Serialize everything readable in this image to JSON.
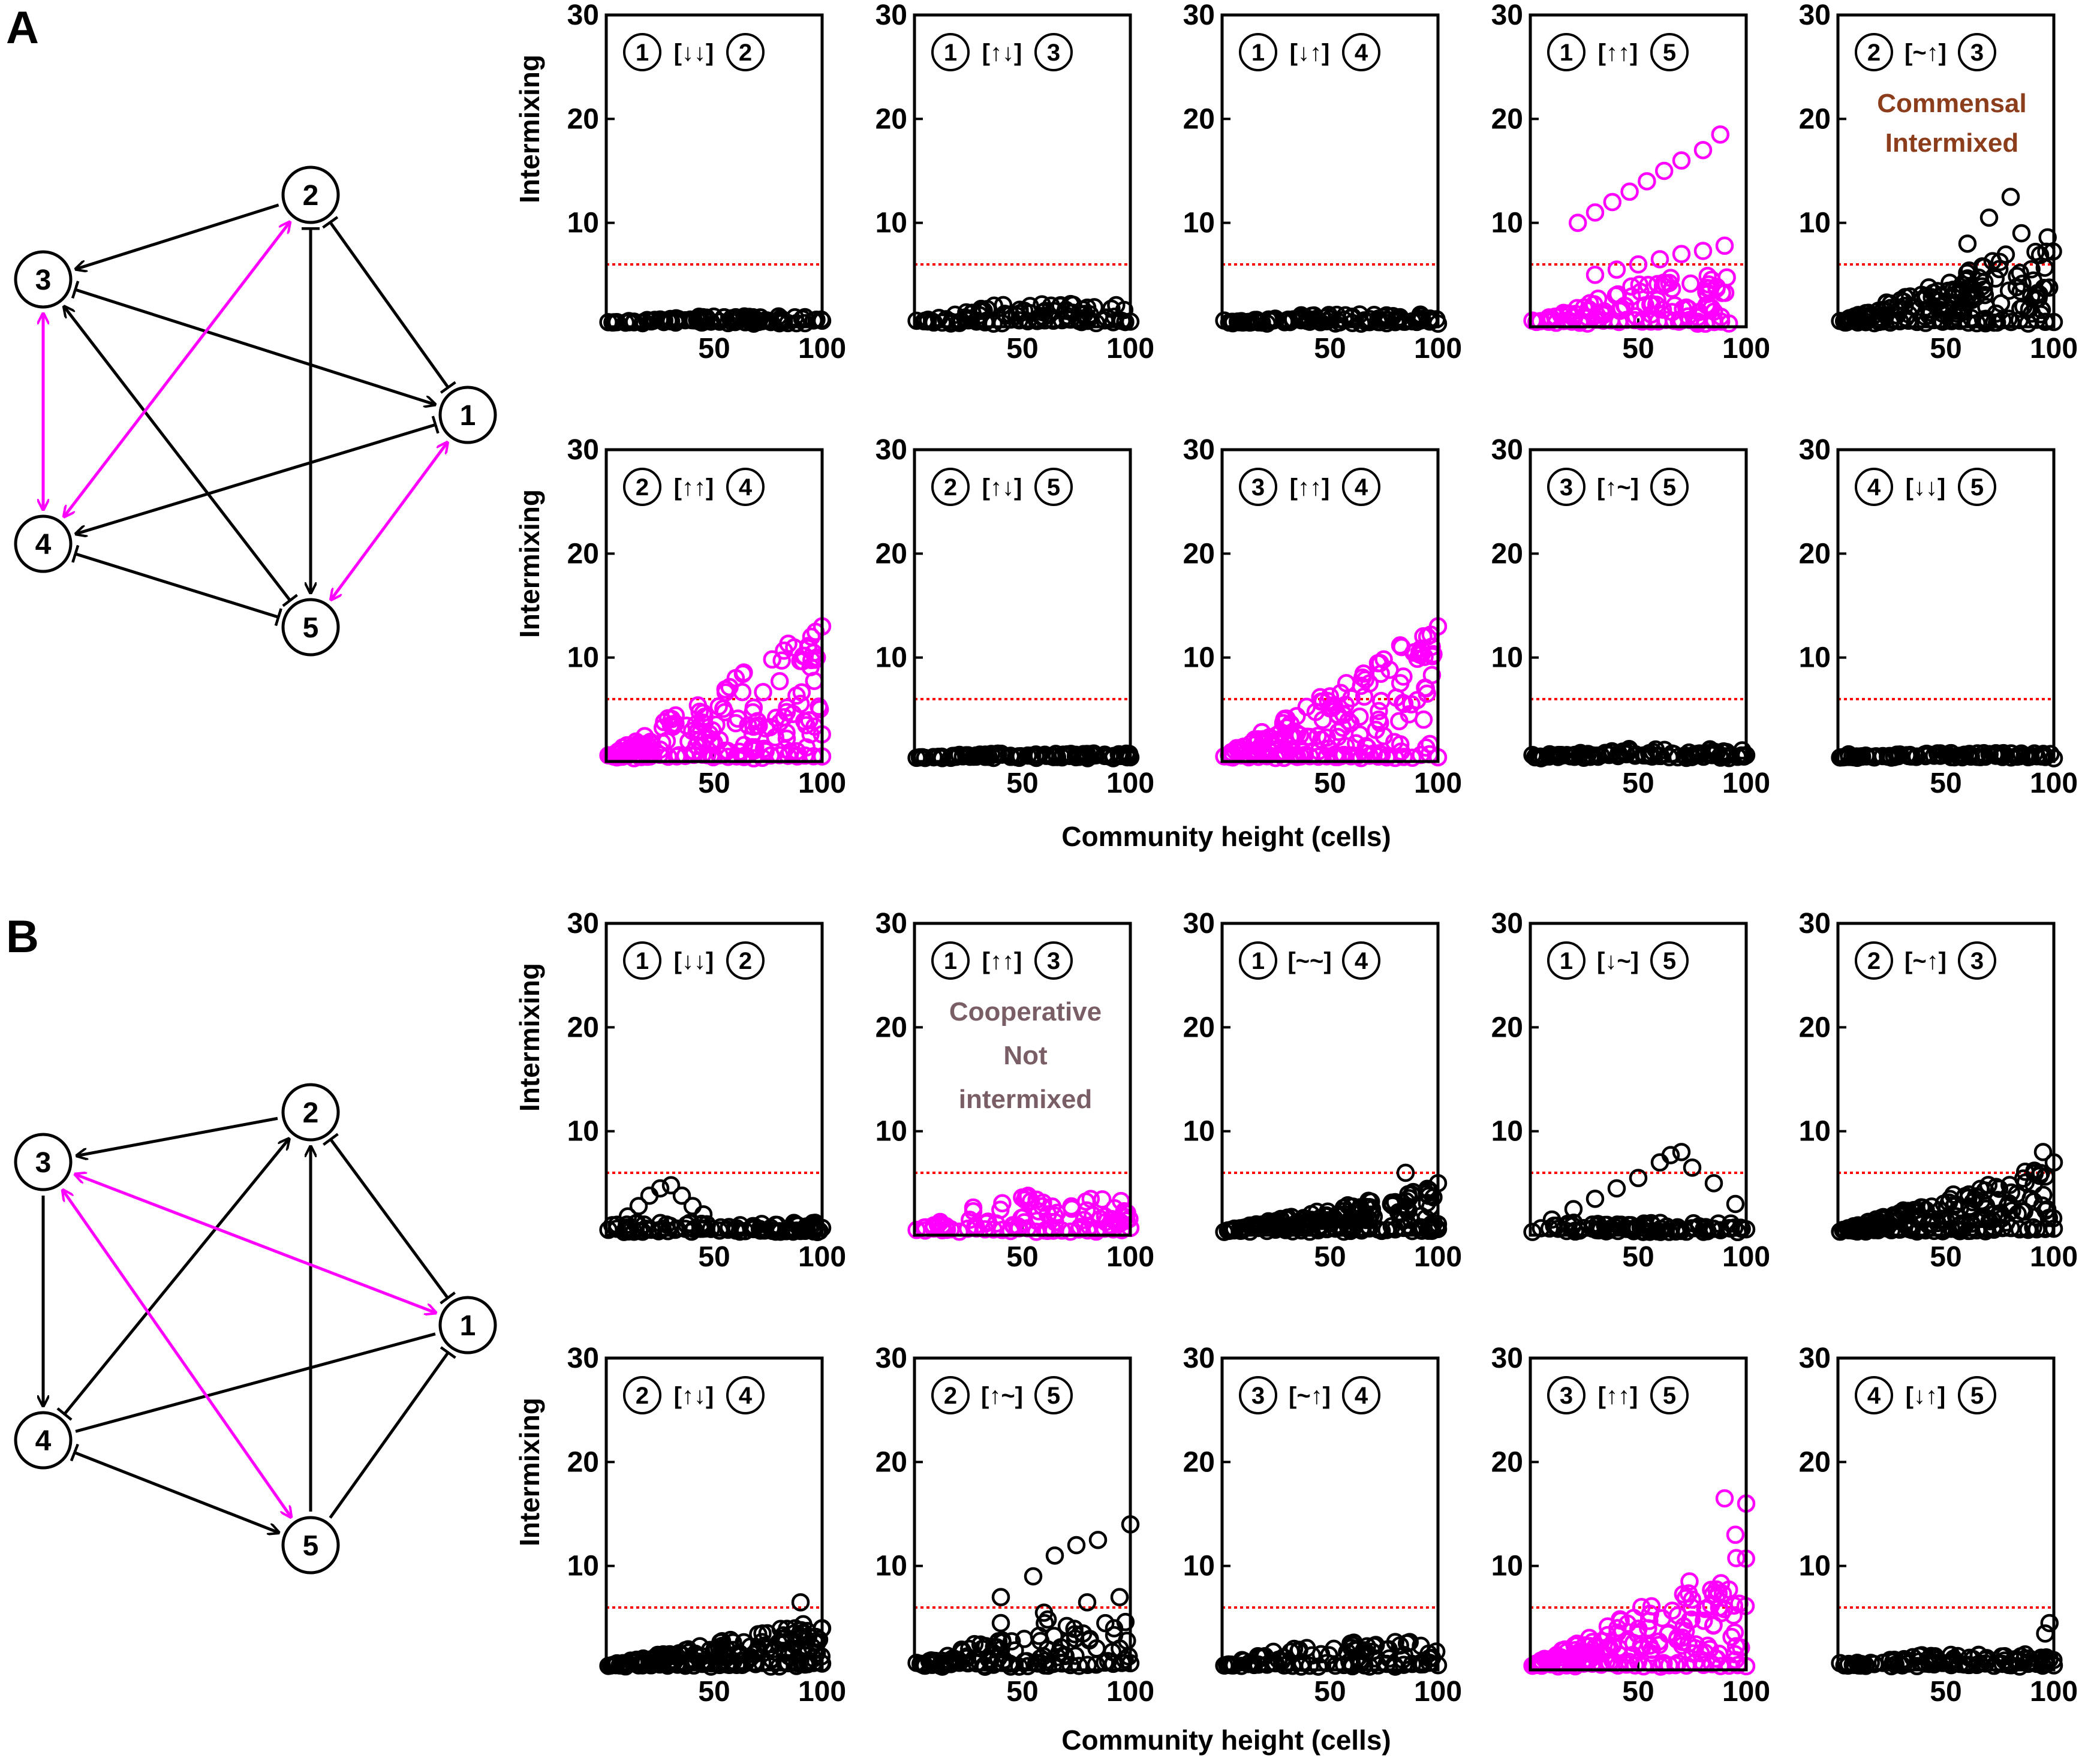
{
  "figure": {
    "panel_labels": [
      "A",
      "B"
    ],
    "common_ylabel": "Intermixing",
    "common_xlabel": "Community height (cells)",
    "axis": {
      "xlim": [
        0,
        100
      ],
      "ylim": [
        0,
        30
      ],
      "xticks": [
        50,
        100
      ],
      "yticks": [
        10,
        20,
        30
      ],
      "threshold": 6
    },
    "colors": {
      "intermixed": "#ff00ff",
      "not_intermixed": "#000000",
      "threshold": "#ff0000",
      "commensal_note": "#8b3d1c",
      "cooperative_note": "#7a5e66"
    }
  },
  "networks": [
    {
      "panel": "A",
      "nodes": [
        "1",
        "2",
        "3",
        "4",
        "5"
      ],
      "edges": [
        {
          "from": "2",
          "to": "3",
          "type": "arrow",
          "color": "black"
        },
        {
          "from": "2",
          "to": "1",
          "type": "inhibit-both",
          "color": "black"
        },
        {
          "from": "3",
          "to": "1",
          "type": "arrow-inhibit",
          "color": "black"
        },
        {
          "from": "1",
          "to": "4",
          "type": "arrow-inhibit",
          "color": "black"
        },
        {
          "from": "2",
          "to": "5",
          "type": "arrow-inhibit",
          "color": "black"
        },
        {
          "from": "5",
          "to": "3",
          "type": "arrow-inhibit",
          "color": "black"
        },
        {
          "from": "4",
          "to": "5",
          "type": "inhibit-both",
          "color": "black"
        },
        {
          "from": "3",
          "to": "4",
          "type": "double-arrow",
          "color": "magenta"
        },
        {
          "from": "2",
          "to": "4",
          "type": "double-arrow",
          "color": "magenta"
        },
        {
          "from": "1",
          "to": "5",
          "type": "double-arrow",
          "color": "magenta"
        }
      ]
    },
    {
      "panel": "B",
      "nodes": [
        "1",
        "2",
        "3",
        "4",
        "5"
      ],
      "edges": [
        {
          "from": "2",
          "to": "3",
          "type": "arrow",
          "color": "black"
        },
        {
          "from": "2",
          "to": "1",
          "type": "inhibit-both",
          "color": "black"
        },
        {
          "from": "3",
          "to": "4",
          "type": "arrow",
          "color": "black"
        },
        {
          "from": "4",
          "to": "2",
          "type": "arrow-inhibit",
          "color": "black"
        },
        {
          "from": "5",
          "to": "2",
          "type": "arrow",
          "color": "black"
        },
        {
          "from": "1",
          "to": "4",
          "type": "plain",
          "color": "black"
        },
        {
          "from": "5",
          "to": "1",
          "type": "inhibit",
          "color": "black"
        },
        {
          "from": "4",
          "to": "5",
          "type": "arrow-inhibit",
          "color": "black"
        },
        {
          "from": "3",
          "to": "1",
          "type": "double-arrow",
          "color": "magenta"
        },
        {
          "from": "3",
          "to": "5",
          "type": "double-arrow",
          "color": "magenta"
        }
      ]
    }
  ],
  "chart_data": [
    {
      "type": "scatter",
      "panel": "A",
      "row": 0,
      "col": 0,
      "pair": [
        "1",
        "2"
      ],
      "relation": [
        "↓",
        "↓"
      ],
      "color": "black",
      "pattern": "flat",
      "y_max": 1.0
    },
    {
      "type": "scatter",
      "panel": "A",
      "row": 0,
      "col": 1,
      "pair": [
        "1",
        "3"
      ],
      "relation": [
        "↑",
        "↓"
      ],
      "color": "black",
      "pattern": "flat",
      "y_max": 2.2
    },
    {
      "type": "scatter",
      "panel": "A",
      "row": 0,
      "col": 2,
      "pair": [
        "1",
        "4"
      ],
      "relation": [
        "↓",
        "↑"
      ],
      "color": "black",
      "pattern": "flat",
      "y_max": 1.2
    },
    {
      "type": "scatter",
      "panel": "A",
      "row": 0,
      "col": 3,
      "pair": [
        "1",
        "5"
      ],
      "relation": [
        "↑",
        "↑"
      ],
      "color": "magenta",
      "pattern": "split",
      "x_end": 92,
      "upper_branch": [
        [
          22,
          10
        ],
        [
          30,
          11
        ],
        [
          38,
          12
        ],
        [
          46,
          13
        ],
        [
          54,
          14
        ],
        [
          62,
          15
        ],
        [
          70,
          16
        ],
        [
          80,
          17
        ],
        [
          88,
          18.5
        ]
      ],
      "lower_branch": [
        [
          30,
          5
        ],
        [
          40,
          5.5
        ],
        [
          50,
          6
        ],
        [
          60,
          6.5
        ],
        [
          70,
          7
        ],
        [
          80,
          7.3
        ],
        [
          90,
          7.8
        ]
      ]
    },
    {
      "type": "scatter",
      "panel": "A",
      "row": 0,
      "col": 4,
      "pair": [
        "2",
        "3"
      ],
      "relation": [
        "~",
        "↑"
      ],
      "color": "black",
      "pattern": "spread",
      "y_max": 8,
      "note": [
        "Commensal",
        "Intermixed"
      ],
      "peaks": [
        [
          70,
          10.5
        ],
        [
          80,
          12.5
        ],
        [
          85,
          9
        ],
        [
          60,
          8
        ]
      ]
    },
    {
      "type": "scatter",
      "panel": "A",
      "row": 1,
      "col": 0,
      "pair": [
        "2",
        "4"
      ],
      "relation": [
        "↑",
        "↑"
      ],
      "color": "magenta",
      "pattern": "spread",
      "y_max": 12,
      "peaks": [
        [
          100,
          13
        ],
        [
          95,
          12
        ]
      ]
    },
    {
      "type": "scatter",
      "panel": "A",
      "row": 1,
      "col": 1,
      "pair": [
        "2",
        "5"
      ],
      "relation": [
        "↑",
        "↓"
      ],
      "color": "black",
      "pattern": "flat",
      "y_max": 0.8
    },
    {
      "type": "scatter",
      "panel": "A",
      "row": 1,
      "col": 2,
      "pair": [
        "3",
        "4"
      ],
      "relation": [
        "↑",
        "↑"
      ],
      "color": "magenta",
      "pattern": "spread",
      "y_max": 12,
      "peaks": [
        [
          100,
          13
        ],
        [
          95,
          12
        ]
      ]
    },
    {
      "type": "scatter",
      "panel": "A",
      "row": 1,
      "col": 3,
      "pair": [
        "3",
        "5"
      ],
      "relation": [
        "↑",
        "~"
      ],
      "color": "black",
      "pattern": "flat",
      "y_max": 1.2
    },
    {
      "type": "scatter",
      "panel": "A",
      "row": 1,
      "col": 4,
      "pair": [
        "4",
        "5"
      ],
      "relation": [
        "↓",
        "↓"
      ],
      "color": "black",
      "pattern": "flat",
      "y_max": 0.8
    },
    {
      "type": "scatter",
      "panel": "B",
      "row": 0,
      "col": 0,
      "pair": [
        "1",
        "2"
      ],
      "relation": [
        "↓",
        "↓"
      ],
      "color": "black",
      "pattern": "bump",
      "y_max": 1,
      "bump": [
        [
          5,
          1
        ],
        [
          10,
          1.8
        ],
        [
          15,
          2.8
        ],
        [
          20,
          3.8
        ],
        [
          25,
          4.5
        ],
        [
          30,
          4.8
        ],
        [
          35,
          3.8
        ],
        [
          40,
          2.8
        ],
        [
          45,
          2
        ]
      ]
    },
    {
      "type": "scatter",
      "panel": "B",
      "row": 0,
      "col": 1,
      "pair": [
        "1",
        "3"
      ],
      "relation": [
        "↑",
        "↑"
      ],
      "color": "magenta",
      "pattern": "flat",
      "y_max": 3.8,
      "note": [
        "Cooperative",
        "Not",
        "intermixed"
      ]
    },
    {
      "type": "scatter",
      "panel": "B",
      "row": 0,
      "col": 2,
      "pair": [
        "1",
        "4"
      ],
      "relation": [
        "~",
        "~"
      ],
      "color": "black",
      "pattern": "spread",
      "y_max": 4,
      "peaks": [
        [
          85,
          6
        ],
        [
          100,
          5
        ]
      ]
    },
    {
      "type": "scatter",
      "panel": "B",
      "row": 0,
      "col": 3,
      "pair": [
        "1",
        "5"
      ],
      "relation": [
        "↓",
        "~"
      ],
      "color": "black",
      "pattern": "bump",
      "y_max": 1,
      "bump": [
        [
          10,
          1.5
        ],
        [
          20,
          2.5
        ],
        [
          30,
          3.5
        ],
        [
          40,
          4.5
        ],
        [
          50,
          5.5
        ],
        [
          60,
          7
        ],
        [
          65,
          7.7
        ],
        [
          70,
          8
        ],
        [
          75,
          6.5
        ],
        [
          85,
          5
        ],
        [
          95,
          3
        ]
      ]
    },
    {
      "type": "scatter",
      "panel": "B",
      "row": 0,
      "col": 4,
      "pair": [
        "2",
        "3"
      ],
      "relation": [
        "~",
        "↑"
      ],
      "color": "black",
      "pattern": "spread",
      "y_max": 6,
      "peaks": [
        [
          95,
          8
        ],
        [
          100,
          7
        ]
      ]
    },
    {
      "type": "scatter",
      "panel": "B",
      "row": 1,
      "col": 0,
      "pair": [
        "2",
        "4"
      ],
      "relation": [
        "↑",
        "↓"
      ],
      "color": "black",
      "pattern": "spread",
      "y_max": 4,
      "peaks": [
        [
          90,
          6.5
        ],
        [
          100,
          4
        ]
      ]
    },
    {
      "type": "scatter",
      "panel": "B",
      "row": 1,
      "col": 1,
      "pair": [
        "2",
        "5"
      ],
      "relation": [
        "↑",
        "~"
      ],
      "color": "black",
      "pattern": "split",
      "x_end": 100,
      "upper_branch": [
        [
          40,
          7
        ],
        [
          55,
          9
        ],
        [
          65,
          11
        ],
        [
          75,
          12
        ],
        [
          85,
          12.5
        ],
        [
          100,
          14
        ]
      ],
      "lower_branch": [
        [
          40,
          4.5
        ],
        [
          60,
          5.5
        ],
        [
          80,
          6.5
        ],
        [
          95,
          7
        ]
      ]
    },
    {
      "type": "scatter",
      "panel": "B",
      "row": 1,
      "col": 2,
      "pair": [
        "3",
        "4"
      ],
      "relation": [
        "~",
        "↑"
      ],
      "color": "black",
      "pattern": "flat",
      "y_max": 2.8
    },
    {
      "type": "scatter",
      "panel": "B",
      "row": 1,
      "col": 3,
      "pair": [
        "3",
        "5"
      ],
      "relation": [
        "↑",
        "↑"
      ],
      "color": "magenta",
      "pattern": "spread",
      "y_max": 10,
      "peaks": [
        [
          90,
          16.5
        ],
        [
          100,
          16
        ],
        [
          95,
          13
        ]
      ]
    },
    {
      "type": "scatter",
      "panel": "B",
      "row": 1,
      "col": 4,
      "pair": [
        "4",
        "5"
      ],
      "relation": [
        "↓",
        "↑"
      ],
      "color": "black",
      "pattern": "flat",
      "y_max": 1.5,
      "peaks": [
        [
          98,
          4.5
        ],
        [
          96,
          3.5
        ]
      ]
    }
  ]
}
